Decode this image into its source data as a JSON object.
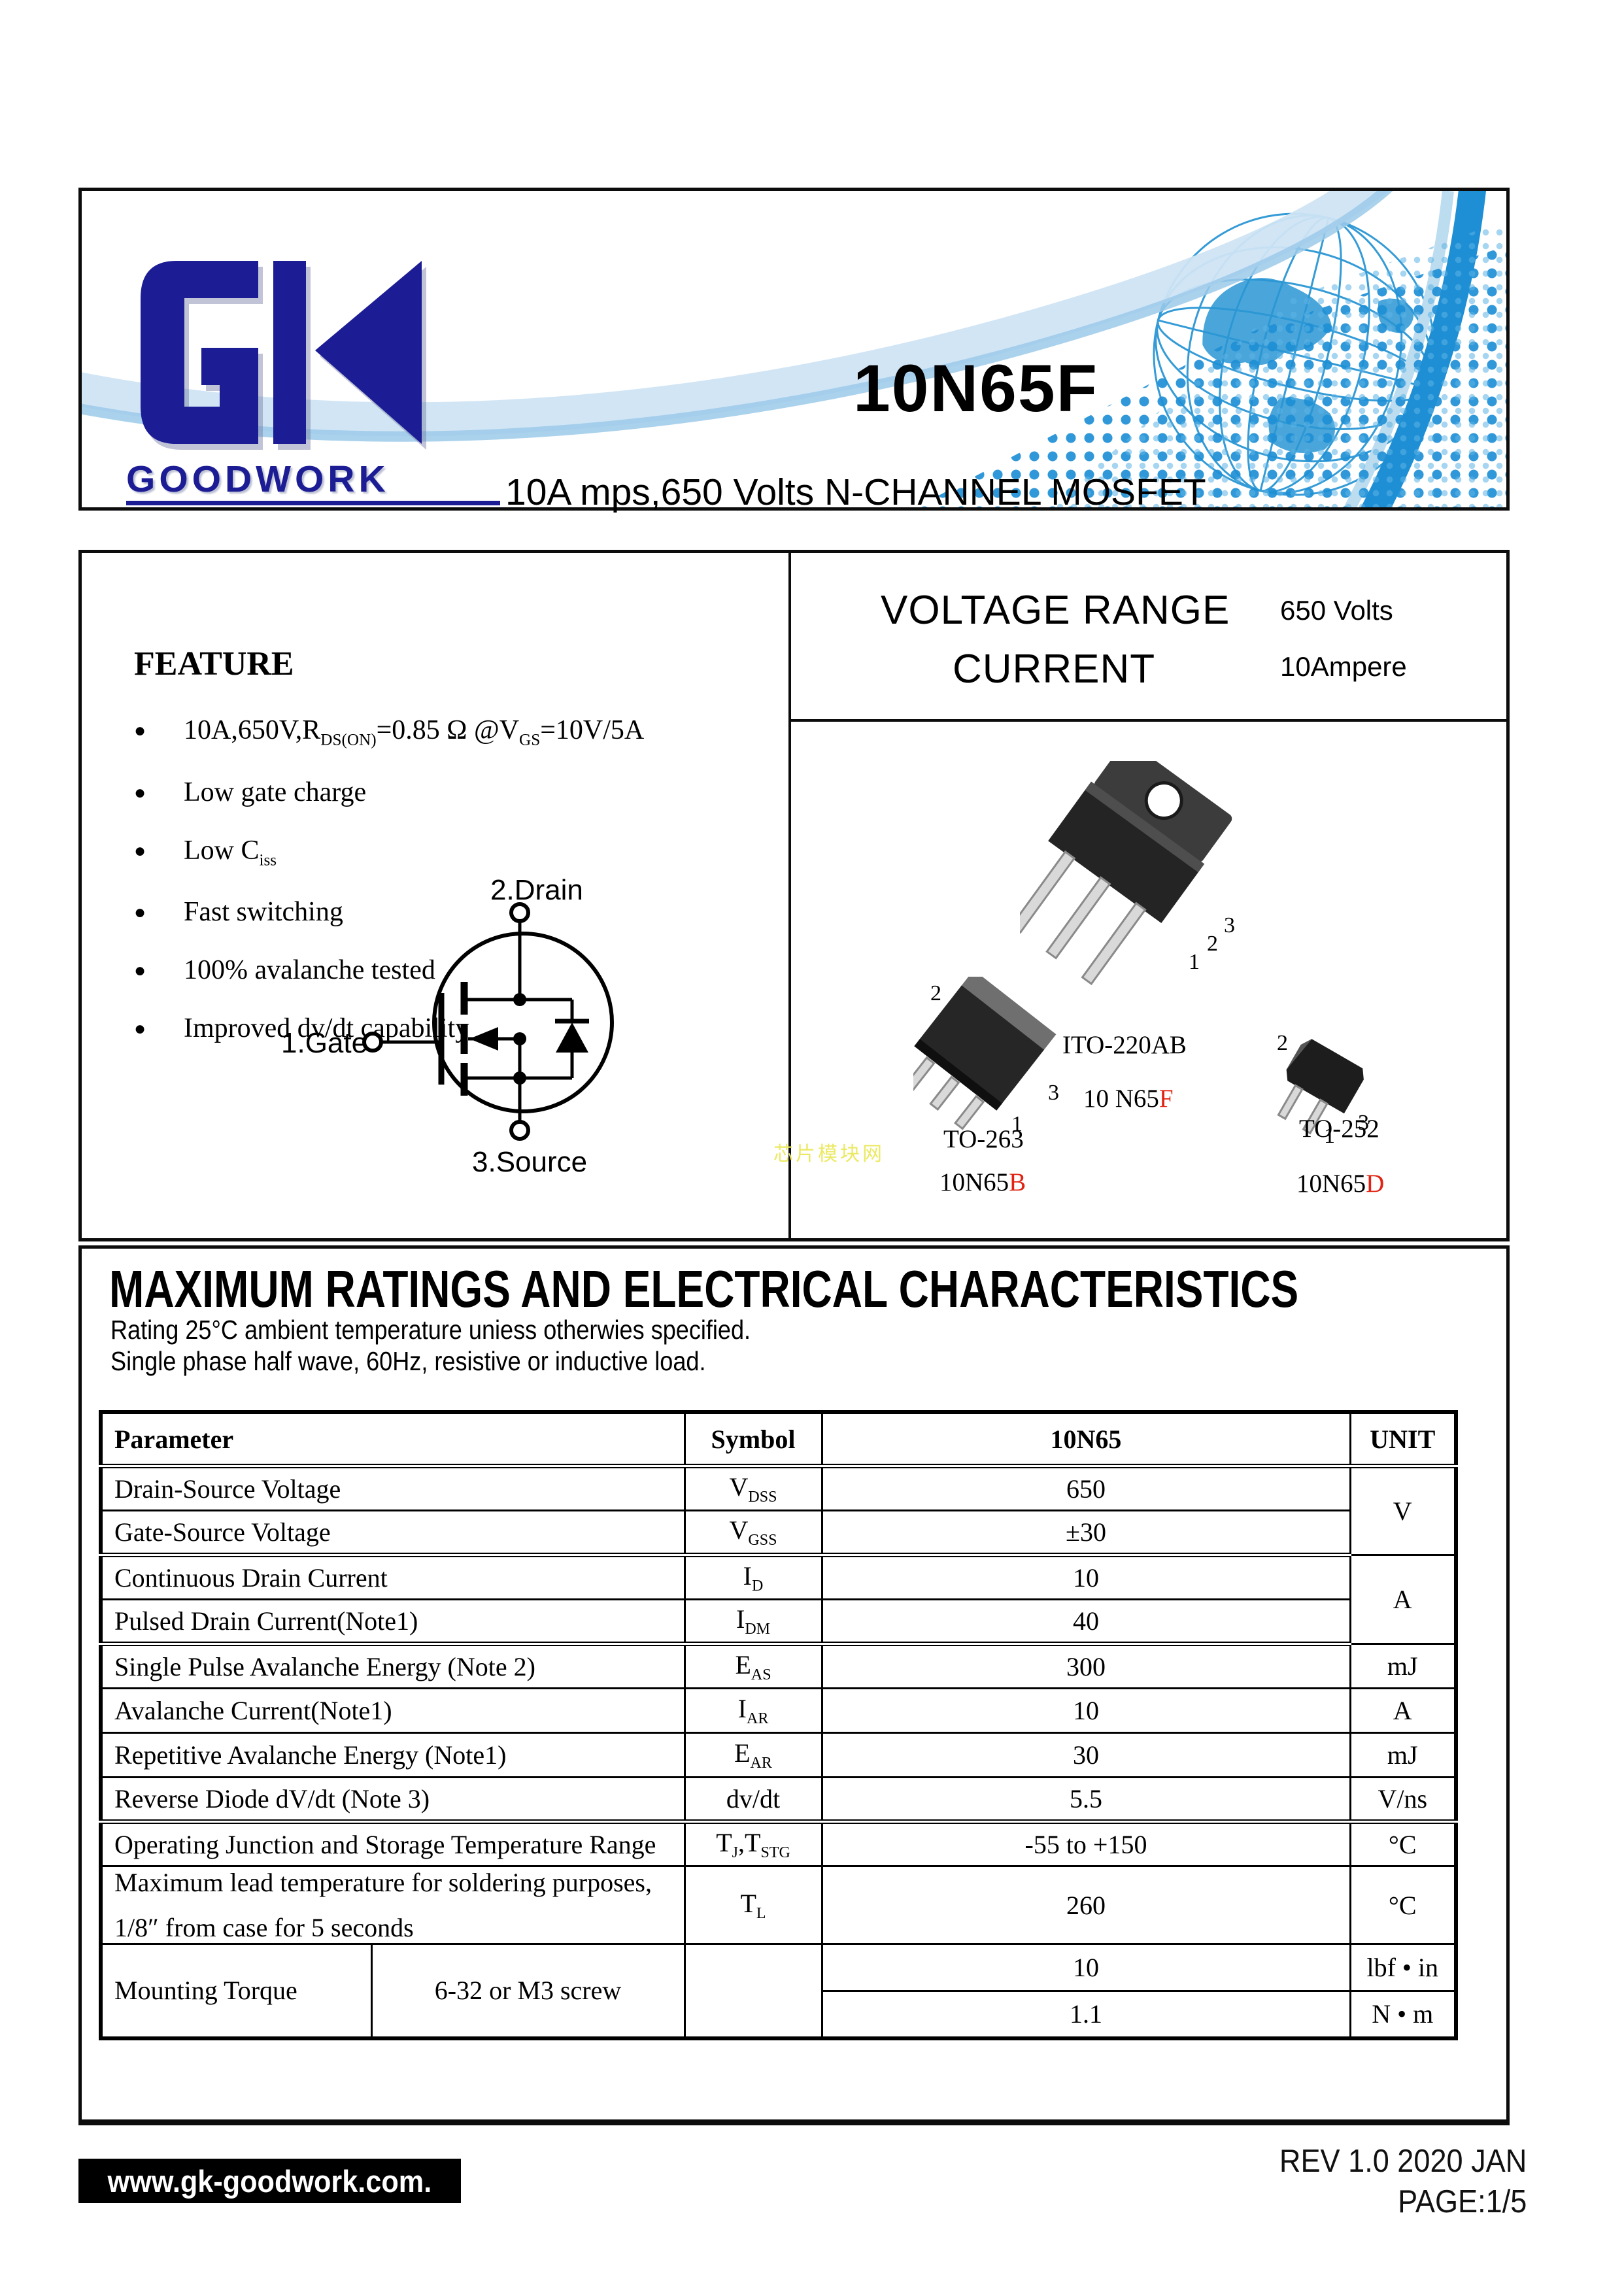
{
  "header": {
    "logo_text": "GK",
    "wordmark": "GOODWORK",
    "part_number": "10N65F",
    "subtitle": "10A mps,650 Volts N-CHANNEL MOSFET"
  },
  "specs": {
    "voltage_label": "VOLTAGE RANGE",
    "voltage_value": "650 Volts",
    "current_label": "CURRENT",
    "current_value": "10Ampere"
  },
  "feature": {
    "title": "FEATURE",
    "items": [
      [
        [
          "10A,650V,R",
          0
        ],
        [
          "DS(ON)",
          1
        ],
        [
          "=0.85 Ω @V",
          0
        ],
        [
          "GS",
          1
        ],
        [
          "=10V/5A",
          0
        ]
      ],
      [
        [
          "Low gate charge",
          0
        ]
      ],
      [
        [
          "Low C",
          0
        ],
        [
          "iss",
          1
        ]
      ],
      [
        [
          "Fast switching",
          0
        ]
      ],
      [
        [
          "100% avalanche tested",
          0
        ]
      ],
      [
        [
          "Improved dv/dt capability",
          0
        ]
      ]
    ]
  },
  "schematic": {
    "drain_label": "2.Drain",
    "gate_label": "1.Gate",
    "source_label": "3.Source"
  },
  "packages": [
    {
      "name": "ITO-220AB",
      "marking": "10 N65",
      "marking_suffix": "F",
      "pins": [
        "1",
        "2",
        "3"
      ]
    },
    {
      "name": "TO-263",
      "marking": "10N65",
      "marking_suffix": "B",
      "pins": [
        "1",
        "2",
        "3"
      ]
    },
    {
      "name": "TO-252",
      "marking": "10N65",
      "marking_suffix": "D",
      "pins": [
        "1",
        "2",
        "3"
      ]
    }
  ],
  "watermark": "芯片模块网",
  "ratings": {
    "title": "MAXIMUM RATINGS AND ELECTRICAL CHARACTERISTICS",
    "note1": "Rating 25°C ambient temperature uniess otherwies specified.",
    "note2": "Single phase half wave, 60Hz, resistive or inductive load.",
    "table": {
      "headers": [
        "Parameter",
        "Symbol",
        "10N65",
        "UNIT"
      ],
      "rows": [
        {
          "param": "Drain-Source Voltage",
          "symbol": [
            [
              "V",
              0
            ],
            [
              "DSS",
              1
            ]
          ],
          "value": "650",
          "unit": "V",
          "unit_rowspan": 2
        },
        {
          "param": "Gate-Source Voltage",
          "symbol": [
            [
              "V",
              0
            ],
            [
              "GSS",
              1
            ]
          ],
          "value": "±30"
        },
        {
          "param": "Continuous Drain Current",
          "symbol": [
            [
              "I",
              0
            ],
            [
              "D",
              1
            ]
          ],
          "value": "10",
          "unit": "A",
          "unit_rowspan": 2
        },
        {
          "param": "Pulsed Drain Current(Note1)",
          "symbol": [
            [
              "I",
              0
            ],
            [
              "DM",
              1
            ]
          ],
          "value": "40"
        },
        {
          "param": "Single Pulse Avalanche Energy (Note 2)",
          "symbol": [
            [
              "E",
              0
            ],
            [
              "AS",
              1
            ]
          ],
          "value": "300",
          "unit": "mJ",
          "unit_rowspan": 1
        },
        {
          "param": "Avalanche Current(Note1)",
          "symbol": [
            [
              "I",
              0
            ],
            [
              "AR",
              1
            ]
          ],
          "value": "10",
          "unit": "A",
          "unit_rowspan": 1
        },
        {
          "param": "Repetitive Avalanche Energy (Note1)",
          "symbol": [
            [
              "E",
              0
            ],
            [
              "AR",
              1
            ]
          ],
          "value": "30",
          "unit": "mJ",
          "unit_rowspan": 1
        },
        {
          "param": "Reverse Diode dV/dt (Note 3)",
          "symbol": [
            [
              "dv/dt",
              0
            ]
          ],
          "value": "5.5",
          "unit": "V/ns",
          "unit_rowspan": 1
        },
        {
          "param": "Operating Junction and Storage Temperature Range",
          "symbol": [
            [
              "T",
              0
            ],
            [
              "J",
              1
            ],
            [
              ",",
              0
            ],
            [
              "T",
              0
            ],
            [
              "STG",
              1
            ]
          ],
          "value": "-55 to +150",
          "unit": "°C",
          "unit_rowspan": 1
        },
        {
          "param_lines": [
            "Maximum lead temperature for soldering purposes,",
            "1/8″ from case for 5 seconds"
          ],
          "symbol": [
            [
              "T",
              0
            ],
            [
              "L",
              1
            ]
          ],
          "value": "260",
          "unit": "°C",
          "unit_rowspan": 1,
          "tall": true
        }
      ],
      "mounting": {
        "param": "Mounting Torque",
        "screw": "6-32 or M3 screw",
        "rows": [
          {
            "value": "10",
            "unit": "lbf • in"
          },
          {
            "value": "1.1",
            "unit": "N • m"
          }
        ]
      }
    }
  },
  "footer": {
    "website": "www.gk-goodwork.com.",
    "rev": "REV 1.0 2020 JAN",
    "page": "PAGE:1/5"
  },
  "colors": {
    "navy": "#1c1c94",
    "blue": "#1e8fd5",
    "light_blue": "#cfe4f4",
    "red": "#e02313",
    "watermark_yellow": "#eae85a"
  }
}
